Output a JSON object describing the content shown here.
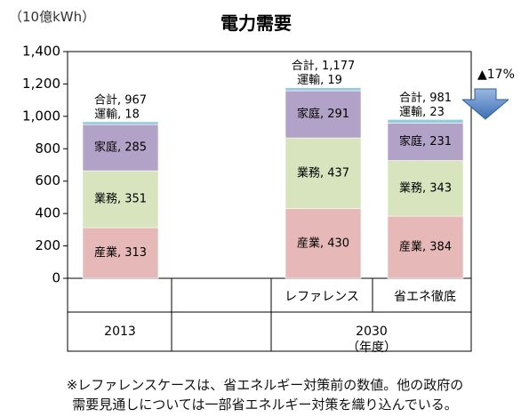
{
  "unit_label": "（10億kWh）",
  "title": "電力需要",
  "reduction_label": "▲17%",
  "footnote": [
    "※レファレンスケースは、省エネルギー対策前の数値。他の政府の",
    "需要見通しについては一部省エネルギー対策を織り込んでいる。"
  ],
  "chart_data": {
    "type": "bar",
    "stacked": true,
    "title": "電力需要",
    "ylabel": "（10億kWh）",
    "ylim": [
      0,
      1400
    ],
    "yticks": [
      0,
      200,
      400,
      600,
      800,
      1000,
      1200,
      1400
    ],
    "ytick_labels": [
      "0",
      "200",
      "400",
      "600",
      "800",
      "1,000",
      "1,200",
      "1,400"
    ],
    "grid": false,
    "categories": [
      "2013",
      "レファレンス",
      "省エネ徹底"
    ],
    "groups": [
      {
        "label": "2013",
        "categories": [
          "2013"
        ]
      },
      {
        "label": "2030",
        "sublabel": "（年度）",
        "categories": [
          "レファレンス",
          "省エネ徹底"
        ]
      }
    ],
    "series": [
      {
        "name": "産業",
        "color": "#e6b9b8",
        "values": [
          313,
          430,
          384
        ]
      },
      {
        "name": "業務",
        "color": "#d7e4bd",
        "values": [
          351,
          437,
          343
        ]
      },
      {
        "name": "家庭",
        "color": "#b3a2c7",
        "values": [
          285,
          291,
          231
        ]
      },
      {
        "name": "運輸",
        "color": "#93cddd",
        "values": [
          18,
          19,
          23
        ]
      }
    ],
    "totals": [
      967,
      1177,
      981
    ],
    "total_prefix": "合計",
    "segment_labels": [
      [
        "産業, 313",
        "業務, 351",
        "家庭, 285",
        "運輸, 18"
      ],
      [
        "産業, 430",
        "業務, 437",
        "家庭, 291",
        "運輸, 19"
      ],
      [
        "産業, 384",
        "業務, 343",
        "家庭, 231",
        "運輸, 23"
      ]
    ],
    "total_labels": [
      "合計, 967",
      "合計, 1,177",
      "合計, 981"
    ]
  }
}
